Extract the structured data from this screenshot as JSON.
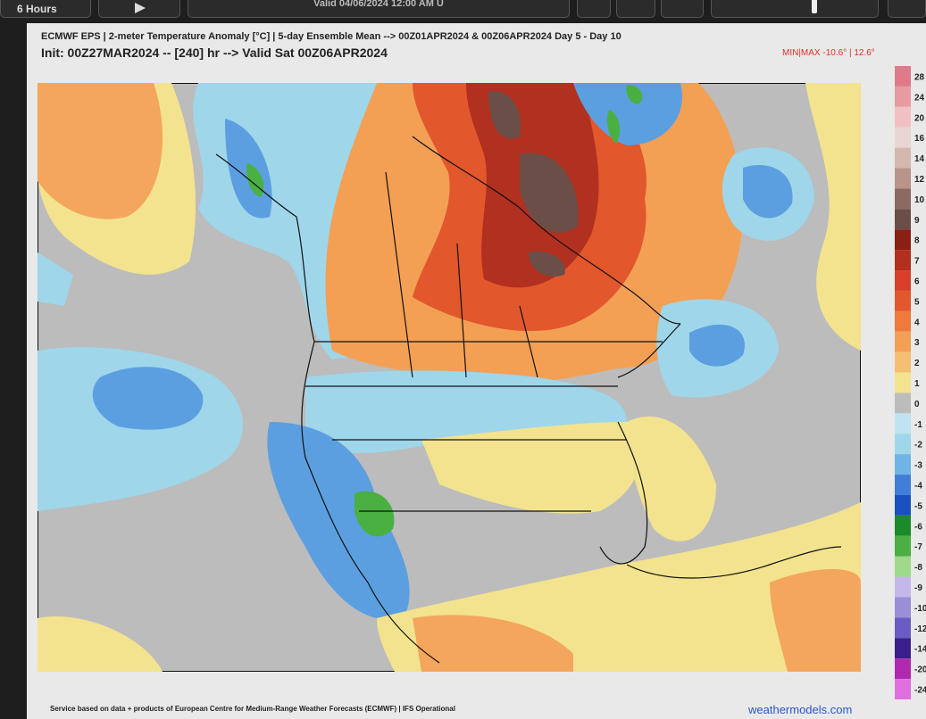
{
  "toolbar": {
    "step_button": "6 Hours",
    "valid_time": "Valid 04/06/2024 12:00 AM U"
  },
  "header": {
    "title": "ECMWF EPS | 2-meter Temperature Anomaly [°C] | 5-day Ensemble Mean --> 00Z01APR2024 & 00Z06APR2024  Day 5 - Day 10",
    "subtitle": "Init: 00Z27MAR2024 -- [240] hr --> Valid Sat 00Z06APR2024",
    "min_max": "MIN|MAX -10.6° | 12.6°"
  },
  "colorbar": {
    "labels": [
      "28",
      "24",
      "20",
      "16",
      "14",
      "12",
      "10",
      "9",
      "8",
      "7",
      "6",
      "5",
      "4",
      "3",
      "2",
      "1",
      "0",
      "-1",
      "-2",
      "-3",
      "-4",
      "-5",
      "-6",
      "-7",
      "-8",
      "-9",
      "-10",
      "-12",
      "-14",
      "-20",
      "-24"
    ]
  },
  "footer": {
    "credit": "Service based on data + products of European Centre for Medium-Range Weather Forecasts (ECMWF) | IFS Operational",
    "site": "weathermodels.com"
  }
}
